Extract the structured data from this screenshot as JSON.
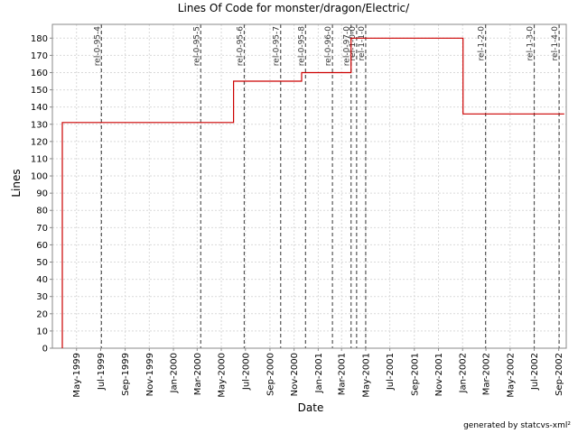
{
  "chart_data": {
    "type": "line",
    "title": "Lines Of Code for monster/dragon/Electric/",
    "xlabel": "Date",
    "ylabel": "Lines",
    "ylim": [
      0,
      188
    ],
    "xlim": [
      "1999-03-01",
      "2002-09-20"
    ],
    "y_ticks": [
      0,
      10,
      20,
      30,
      40,
      50,
      60,
      70,
      80,
      90,
      100,
      110,
      120,
      130,
      140,
      150,
      160,
      170,
      180
    ],
    "x_ticks": [
      {
        "date": "1999-05-01",
        "label": "May-1999"
      },
      {
        "date": "1999-07-01",
        "label": "Jul-1999"
      },
      {
        "date": "1999-09-01",
        "label": "Sep-1999"
      },
      {
        "date": "1999-11-01",
        "label": "Nov-1999"
      },
      {
        "date": "2000-01-01",
        "label": "Jan-2000"
      },
      {
        "date": "2000-03-01",
        "label": "Mar-2000"
      },
      {
        "date": "2000-05-01",
        "label": "May-2000"
      },
      {
        "date": "2000-07-01",
        "label": "Jul-2000"
      },
      {
        "date": "2000-09-01",
        "label": "Sep-2000"
      },
      {
        "date": "2000-11-01",
        "label": "Nov-2000"
      },
      {
        "date": "2001-01-01",
        "label": "Jan-2001"
      },
      {
        "date": "2001-03-01",
        "label": "Mar-2001"
      },
      {
        "date": "2001-05-01",
        "label": "May-2001"
      },
      {
        "date": "2001-07-01",
        "label": "Jul-2001"
      },
      {
        "date": "2001-09-01",
        "label": "Sep-2001"
      },
      {
        "date": "2001-11-01",
        "label": "Nov-2001"
      },
      {
        "date": "2002-01-01",
        "label": "Jan-2002"
      },
      {
        "date": "2002-03-01",
        "label": "Mar-2002"
      },
      {
        "date": "2002-05-01",
        "label": "May-2002"
      },
      {
        "date": "2002-07-01",
        "label": "Jul-2002"
      },
      {
        "date": "2002-09-01",
        "label": "Sep-2002"
      }
    ],
    "series": [
      {
        "color": "#cc0000",
        "step": true,
        "points": [
          {
            "x": "1999-03-26",
            "y": 0
          },
          {
            "x": "1999-03-26",
            "y": 131
          },
          {
            "x": "2000-06-01",
            "y": 155
          },
          {
            "x": "2000-11-20",
            "y": 160
          },
          {
            "x": "2001-03-25",
            "y": 180
          },
          {
            "x": "2002-01-02",
            "y": 136
          },
          {
            "x": "2002-09-15",
            "y": 136
          }
        ]
      }
    ],
    "releases": [
      {
        "date": "1999-07-03",
        "label": "rel-0-95-4"
      },
      {
        "date": "2000-03-10",
        "label": "rel-0-95-5"
      },
      {
        "date": "2000-06-28",
        "label": "rel-0-95-6"
      },
      {
        "date": "2000-09-28",
        "label": "rel-0-95-7"
      },
      {
        "date": "2000-11-30",
        "label": "rel-0-95-8"
      },
      {
        "date": "2001-02-06",
        "label": "rel-0-96-0"
      },
      {
        "date": "2001-03-25",
        "label": "rel-0-97-0"
      },
      {
        "date": "2001-04-08",
        "label": "rel-1-0-0"
      },
      {
        "date": "2001-05-01",
        "label": "rel-1-1-0"
      },
      {
        "date": "2002-02-28",
        "label": "rel-1-2-0"
      },
      {
        "date": "2002-07-01",
        "label": "rel-1-3-0"
      },
      {
        "date": "2002-09-02",
        "label": "rel-1-4-0"
      }
    ],
    "grid": true,
    "legend": "none",
    "colors": {
      "line": "#cc0000",
      "grid": "#d9d9d9",
      "release_marker": "#555555",
      "axis": "#888888"
    }
  },
  "footer": "generated by statcvs-xml²"
}
